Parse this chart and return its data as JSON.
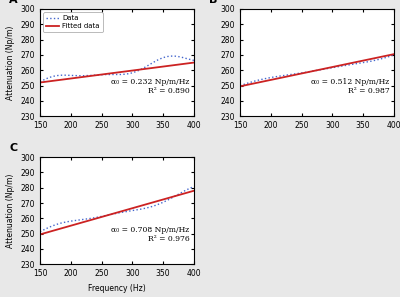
{
  "subplots": [
    {
      "label": "A",
      "alpha0_text": "α₀ = 0.232 Np/m/Hz",
      "R2_text": "R² = 0.890",
      "fitted_start": 252.0,
      "fitted_end": 265.0,
      "data_start": 251.5,
      "data_end": 267.5,
      "data_wiggle_amp": 3.0,
      "data_wiggle_periods": 1.5
    },
    {
      "label": "B",
      "alpha0_text": "α₀ = 0.512 Np/m/Hz",
      "R2_text": "R² = 0.987",
      "fitted_start": 249.5,
      "fitted_end": 270.5,
      "data_start": 249.5,
      "data_end": 270.5,
      "data_wiggle_amp": 1.5,
      "data_wiggle_periods": 1.0
    },
    {
      "label": "C",
      "alpha0_text": "α₀ = 0.708 Np/m/Hz",
      "R2_text": "R² = 0.976",
      "fitted_start": 249.5,
      "fitted_end": 278.0,
      "data_start": 250.5,
      "data_end": 277.5,
      "data_wiggle_amp": 2.5,
      "data_wiggle_periods": 1.2
    }
  ],
  "xmin": 150,
  "xmax": 400,
  "ymin": 230,
  "ymax": 300,
  "xlabel": "Frequency (Hz)",
  "ylabel": "Attenuation (Np/m)",
  "xticks": [
    150,
    200,
    250,
    300,
    350,
    400
  ],
  "yticks": [
    230,
    240,
    250,
    260,
    270,
    280,
    290,
    300
  ],
  "fitted_color": "#cc2222",
  "data_color": "#4466cc",
  "legend_labels": [
    "Data",
    "Fitted data"
  ],
  "background_color": "#ffffff",
  "fig_bgcolor": "#e8e8e8"
}
